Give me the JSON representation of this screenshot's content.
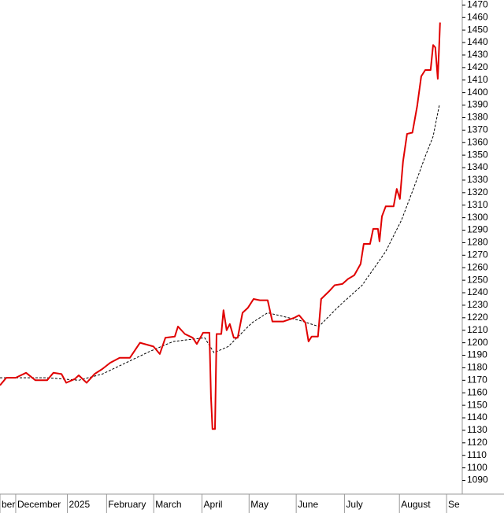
{
  "chart_data": {
    "type": "line",
    "xlim": [
      -7,
      199
    ],
    "ylim": [
      1079,
      1474
    ],
    "yticks": [
      1090,
      1100,
      1110,
      1120,
      1130,
      1140,
      1150,
      1160,
      1170,
      1180,
      1190,
      1200,
      1210,
      1220,
      1230,
      1240,
      1250,
      1260,
      1270,
      1280,
      1290,
      1300,
      1310,
      1320,
      1330,
      1340,
      1350,
      1360,
      1370,
      1380,
      1390,
      1400,
      1410,
      1420,
      1430,
      1440,
      1450,
      1460,
      1470
    ],
    "xticks": [
      {
        "value": -7,
        "label": "ber"
      },
      {
        "value": 0,
        "label": "December"
      },
      {
        "value": 23,
        "label": "2025"
      },
      {
        "value": 40.5,
        "label": "February"
      },
      {
        "value": 61.5,
        "label": "March"
      },
      {
        "value": 83,
        "label": "April"
      },
      {
        "value": 104,
        "label": "May"
      },
      {
        "value": 125,
        "label": "June"
      },
      {
        "value": 146.5,
        "label": "July"
      },
      {
        "value": 171,
        "label": "August"
      },
      {
        "value": 192,
        "label": "Se"
      }
    ],
    "series": [
      {
        "color": "#e00000",
        "dashed": false,
        "x": [
          -7.0,
          -4.2,
          0,
          4.6,
          8.8,
          14.0,
          16.8,
          20.4,
          22.5,
          26.3,
          28.1,
          31.6,
          35.1,
          38.6,
          42.1,
          46.3,
          50.9,
          55.4,
          61.4,
          64.2,
          66.7,
          70.9,
          72.3,
          75.4,
          78.9,
          80.7,
          83.5,
          86.3,
          87.0,
          87.7,
          88.8,
          89.5,
          91.6,
          92.6,
          94.0,
          95.4,
          97.2,
          98.9,
          101.1,
          103.5,
          106.0,
          108.8,
          112.3,
          114.4,
          119.3,
          124.2,
          126.3,
          129.1,
          130.5,
          131.9,
          134.7,
          136.1,
          139.6,
          142.1,
          145.6,
          148.1,
          150.9,
          153.7,
          155.1,
          157.9,
          159.3,
          161.4,
          162.1,
          163.2,
          164.9,
          168.4,
          169.8,
          171.2,
          172.6,
          174.4,
          176.8,
          178.9,
          180.7,
          182.5,
          184.9,
          186.0,
          187.0,
          188.1,
          188.8,
          189.1
        ],
        "values": [
          1166,
          1172,
          1172,
          1176,
          1170,
          1170,
          1176,
          1175,
          1168,
          1171,
          1174,
          1168,
          1175,
          1179,
          1184,
          1188,
          1188,
          1200,
          1197,
          1191,
          1204,
          1205,
          1213,
          1207,
          1204,
          1199,
          1208,
          1208,
          1157,
          1131,
          1131,
          1207,
          1207,
          1226,
          1210,
          1215,
          1204,
          1204,
          1224,
          1228,
          1235,
          1234,
          1234,
          1217,
          1217,
          1220,
          1222,
          1216,
          1201,
          1205,
          1205,
          1235,
          1241,
          1246,
          1247,
          1251,
          1254,
          1263,
          1279,
          1279,
          1291,
          1291,
          1281,
          1301,
          1309,
          1309,
          1323,
          1315,
          1345,
          1367,
          1368,
          1389,
          1413,
          1418,
          1418,
          1438,
          1436,
          1411,
          1441,
          1456
        ]
      },
      {
        "color": "#000000",
        "dashed": true,
        "x": [
          -7.0,
          14.0,
          28.1,
          38.6,
          49.1,
          59.6,
          70.2,
          84.2,
          88.4,
          94.7,
          105.3,
          112.3,
          126.3,
          135.1,
          143.9,
          154.4,
          164.9,
          171.9,
          177.2,
          182.5,
          186.0,
          188.8
        ],
        "values": [
          1172,
          1172,
          1170,
          1175,
          1184,
          1193,
          1201,
          1204,
          1192,
          1197,
          1216,
          1224,
          1218,
          1213,
          1229,
          1246,
          1273,
          1298,
          1323,
          1349,
          1365,
          1390
        ]
      }
    ]
  }
}
